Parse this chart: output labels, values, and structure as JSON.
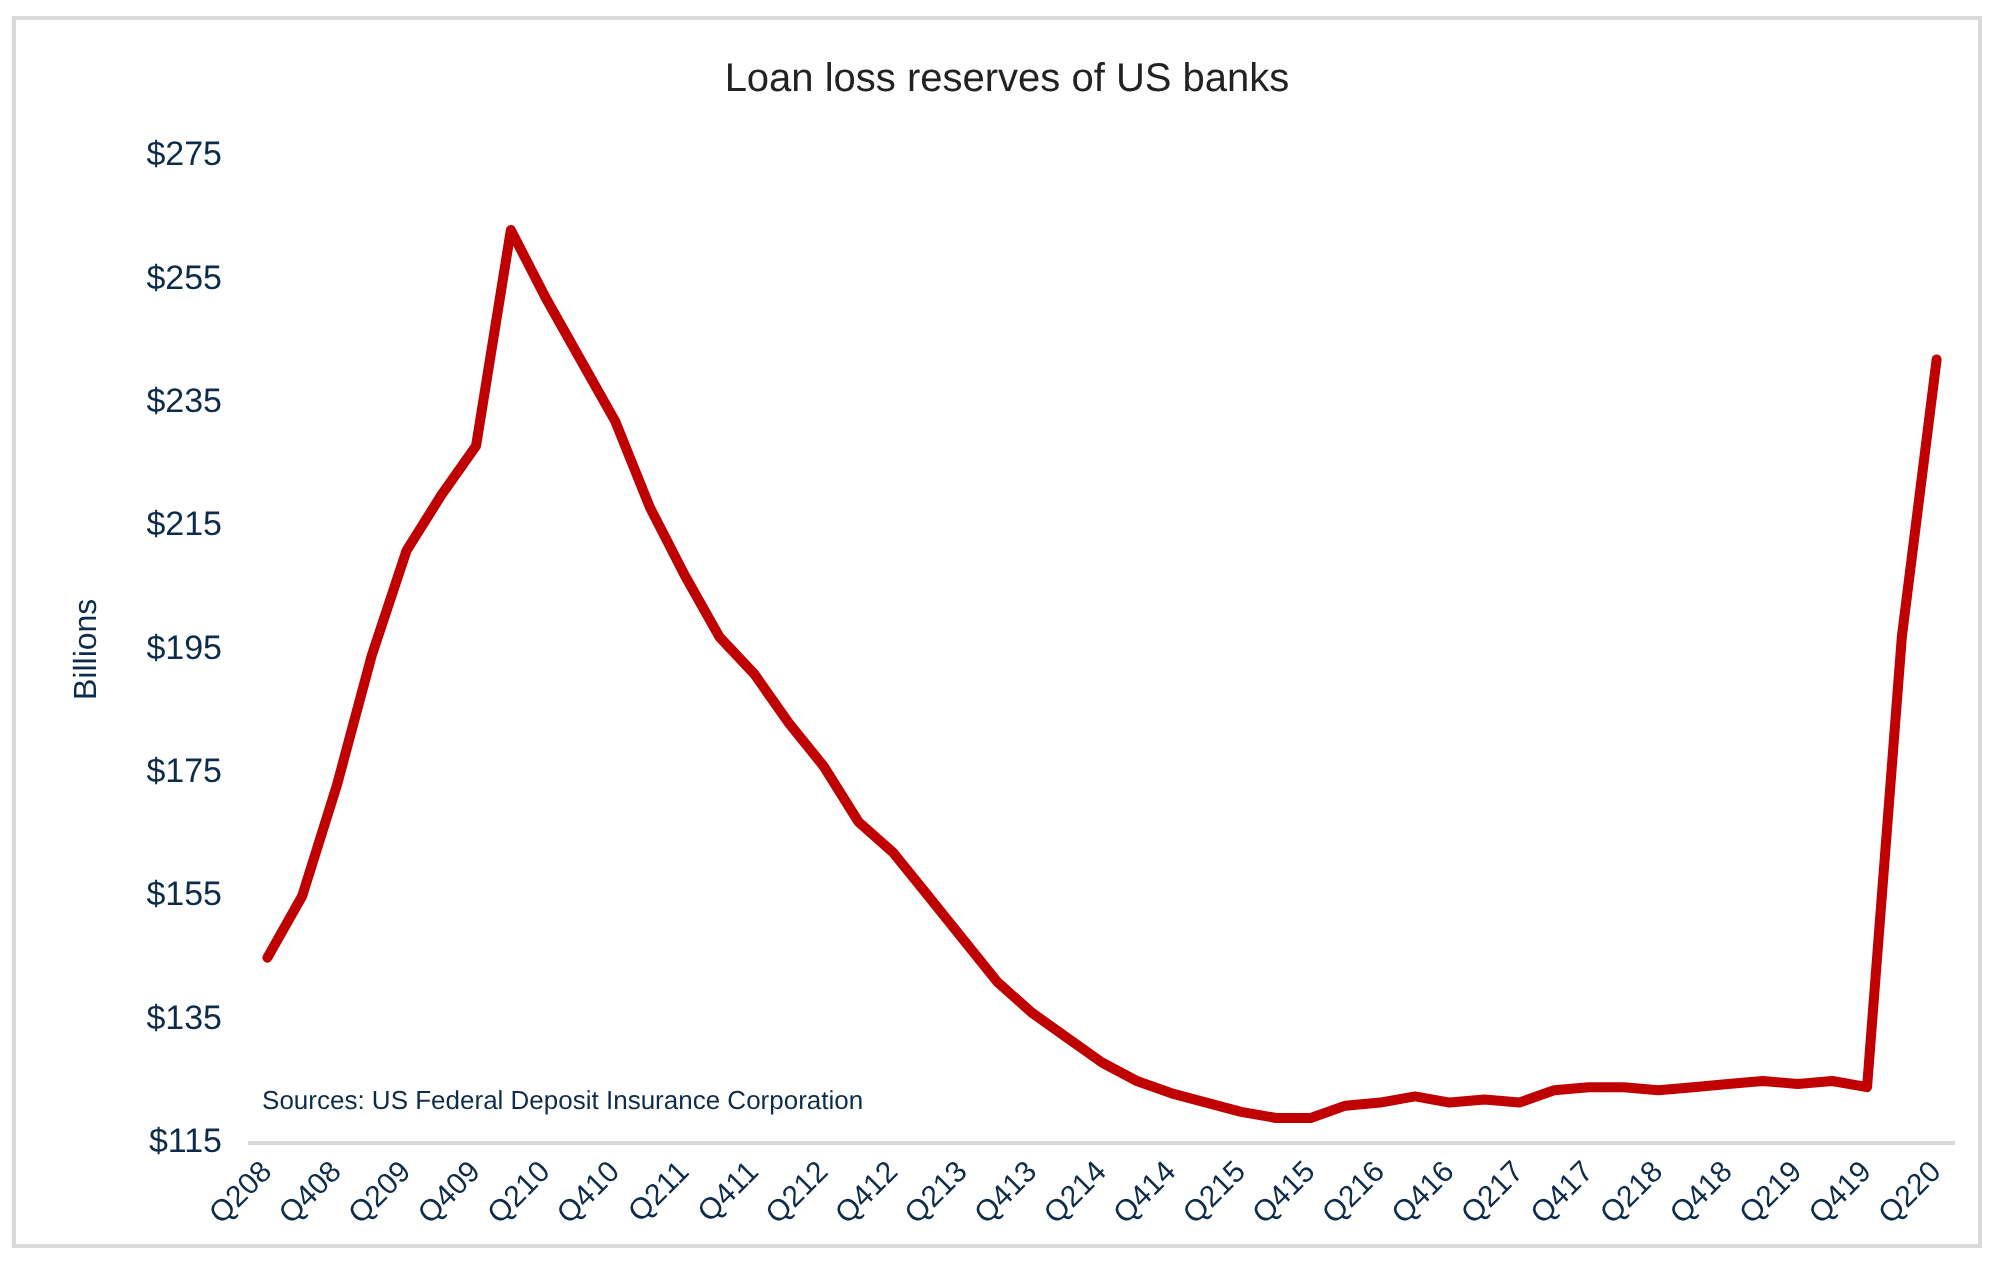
{
  "chart_data": {
    "type": "line",
    "title": "Loan loss reserves of US banks",
    "ylabel": "Billions",
    "categories": [
      "Q208",
      null,
      "Q408",
      null,
      "Q209",
      null,
      "Q409",
      null,
      "Q210",
      null,
      "Q410",
      null,
      "Q211",
      null,
      "Q411",
      null,
      "Q212",
      null,
      "Q412",
      null,
      "Q213",
      null,
      "Q413",
      null,
      "Q214",
      null,
      "Q414",
      null,
      "Q215",
      null,
      "Q415",
      null,
      "Q216",
      null,
      "Q416",
      null,
      "Q217",
      null,
      "Q417",
      null,
      "Q218",
      null,
      "Q418",
      null,
      "Q219",
      null,
      "Q419",
      null,
      "Q220"
    ],
    "series": [
      {
        "color": "#c00000",
        "values": [
          145,
          155,
          173,
          194,
          211,
          220,
          228,
          263,
          252,
          242,
          232,
          218,
          207,
          197,
          191,
          183,
          176,
          167,
          162,
          155,
          148,
          141,
          136,
          132,
          128,
          125,
          123,
          121.5,
          120,
          119,
          119,
          121,
          121.5,
          122.5,
          121.5,
          122,
          121.5,
          123.5,
          124,
          124,
          123.5,
          124,
          124.5,
          125,
          124.5,
          125,
          124,
          197,
          242
        ]
      }
    ],
    "ylim": [
      115,
      275
    ],
    "yticks": [
      {
        "value": 115,
        "label": "$115"
      },
      {
        "value": 135,
        "label": "$135"
      },
      {
        "value": 155,
        "label": "$155"
      },
      {
        "value": 175,
        "label": "$175"
      },
      {
        "value": 195,
        "label": "$195"
      },
      {
        "value": 215,
        "label": "$215"
      },
      {
        "value": 235,
        "label": "$235"
      },
      {
        "value": 255,
        "label": "$255"
      },
      {
        "value": 275,
        "label": "$275"
      }
    ],
    "grid": false,
    "legend": false,
    "marker": "none",
    "line_style": "solid",
    "annotations": [
      "Sources: US Federal Deposit Insurance Corporation"
    ]
  }
}
